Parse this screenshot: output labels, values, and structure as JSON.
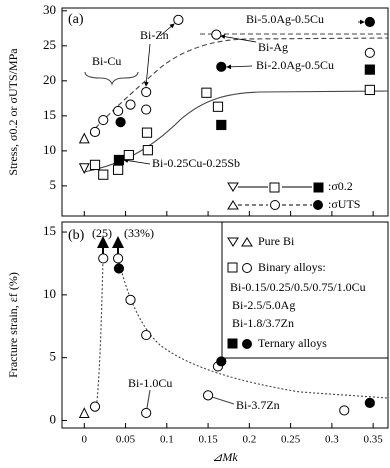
{
  "chart_data": [
    {
      "type": "scatter",
      "panel_label": "(a)",
      "y_label": "Stress, σ0.2 or σUTS/MPa",
      "xlim": [
        -0.027,
        0.368
      ],
      "xticks": [
        0,
        0.05,
        0.1,
        0.15,
        0.2,
        0.25,
        0.3,
        0.35
      ],
      "ylim": [
        0.7,
        30.4
      ],
      "yticks": [
        5,
        10,
        15,
        20,
        25,
        30
      ],
      "series": [
        {
          "marker": "triangle-down",
          "color": "#000",
          "filled": false,
          "x": [
            0
          ],
          "values": [
            7.5
          ]
        },
        {
          "marker": "triangle-up",
          "color": "#000",
          "filled": false,
          "x": [
            0
          ],
          "values": [
            11.8
          ]
        },
        {
          "marker": "square",
          "color": "#000",
          "filled": false,
          "x": [
            0.013,
            0.023,
            0.041,
            0.054,
            0.077,
            0.076,
            0.148,
            0.162,
            0.346
          ],
          "values": [
            8.0,
            6.6,
            7.3,
            9.4,
            10.1,
            12.6,
            18.3,
            16.3,
            18.7
          ]
        },
        {
          "marker": "circle",
          "color": "#000",
          "filled": false,
          "x": [
            0.013,
            0.023,
            0.041,
            0.056,
            0.075,
            0.075,
            0.114,
            0.16,
            0.346
          ],
          "values": [
            12.7,
            14.4,
            15.7,
            16.6,
            18.4,
            15.9,
            28.7,
            26.6,
            24
          ]
        },
        {
          "marker": "square",
          "color": "#000",
          "filled": true,
          "x": [
            0.042,
            0.166,
            0.346
          ],
          "values": [
            8.7,
            13.7,
            21.6
          ]
        },
        {
          "marker": "circle",
          "color": "#000",
          "filled": true,
          "x": [
            0.044,
            0.166,
            0.346
          ],
          "values": [
            14.1,
            22,
            28.4
          ]
        }
      ],
      "legend": [
        ":σ0.2",
        ":σUTS"
      ],
      "annotations": [
        "Bi-Zn",
        "Bi-Cu",
        "Bi-Ag",
        "Bi-5.0Ag-0.5Cu",
        "Bi-2.0Ag-0.5Cu",
        "Bi-0.25Cu-0.25Sb"
      ]
    },
    {
      "type": "scatter",
      "panel_label": "(b)",
      "y_label": "Fracture strain, εf (%)",
      "x_label": "⊿Mk",
      "xlim": [
        -0.027,
        0.368
      ],
      "xticks": [
        0,
        0.05,
        0.1,
        0.15,
        0.2,
        0.25,
        0.3,
        0.35
      ],
      "ylim": [
        -0.6,
        15.8
      ],
      "yticks": [
        0,
        5,
        10,
        15
      ],
      "series": [
        {
          "marker": "triangle-up",
          "color": "#000",
          "filled": false,
          "x": [
            0
          ],
          "values": [
            0.6
          ]
        },
        {
          "marker": "circle",
          "color": "#000",
          "filled": false,
          "x": [
            0.013,
            0.023,
            0.041,
            0.056,
            0.075,
            0.075,
            0.162,
            0.15,
            0.315
          ],
          "values": [
            1.1,
            12.9,
            12.9,
            9.6,
            6.8,
            0.6,
            4.3,
            2.0,
            0.8
          ]
        },
        {
          "marker": "circle",
          "color": "#000",
          "filled": true,
          "x": [
            0.042,
            0.166,
            0.346
          ],
          "values": [
            12.1,
            4.7,
            1.4
          ]
        }
      ],
      "legend": [
        "Pure Bi",
        "Binary alloys:",
        "Bi-0.15/0.25/0.5/0.75/1.0Cu",
        "Bi-2.5/5.0Ag",
        "Bi-1.8/3.7Zn",
        "Ternary alloys"
      ],
      "annotations": [
        "(25)",
        "(33%)",
        "Bi-1.0Cu",
        "Bi-3.7Zn"
      ]
    }
  ]
}
